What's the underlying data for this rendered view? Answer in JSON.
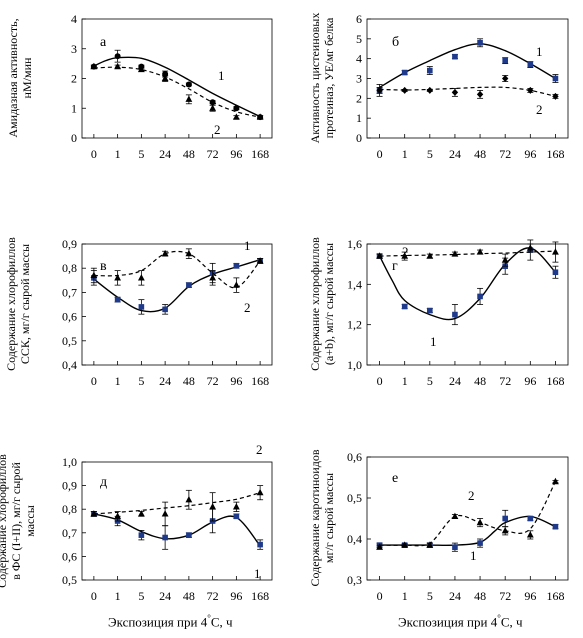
{
  "x_ticks": [
    "0",
    "1",
    "5",
    "24",
    "48",
    "72",
    "96",
    "168"
  ],
  "x_axis_label": {
    "before": "Экспозиция при 4",
    "degree": "°",
    "after": "С, ч"
  },
  "chart_data": [
    {
      "id": "a",
      "type": "line",
      "panel_letter": "а",
      "ylabel": [
        "Амидазная активность,",
        "нМ/мин"
      ],
      "ylim": [
        0,
        4
      ],
      "yticks": [
        0,
        1,
        2,
        3,
        4
      ],
      "ytick_decimals": 0,
      "categories": [
        "0",
        "1",
        "5",
        "24",
        "48",
        "72",
        "96",
        "168"
      ],
      "series": [
        {
          "name": "1",
          "marker": "circle",
          "dashed": false,
          "values": [
            2.4,
            2.75,
            2.4,
            2.15,
            1.8,
            1.2,
            1.0,
            0.7
          ],
          "errors": [
            0.05,
            0.2,
            0.05,
            0.1,
            0.05,
            0.05,
            0.05,
            0.05
          ],
          "curve": [
            [
              0,
              2.42
            ],
            [
              0.5,
              2.6
            ],
            [
              1,
              2.7
            ],
            [
              2,
              2.68
            ],
            [
              3,
              2.38
            ],
            [
              4,
              1.95
            ],
            [
              5,
              1.5
            ],
            [
              6,
              1.1
            ],
            [
              7,
              0.72
            ]
          ]
        },
        {
          "name": "2",
          "marker": "triangle",
          "dashed": true,
          "values": [
            2.4,
            2.4,
            2.3,
            2.0,
            1.3,
            1.0,
            0.7,
            0.7
          ],
          "errors": [
            0.05,
            0.05,
            0.05,
            0.1,
            0.15,
            0.1,
            0.05,
            0.05
          ],
          "curve": [
            [
              0,
              2.35
            ],
            [
              1,
              2.38
            ],
            [
              2,
              2.3
            ],
            [
              3,
              2.05
            ],
            [
              4,
              1.65
            ],
            [
              5,
              1.2
            ],
            [
              6,
              0.88
            ],
            [
              7,
              0.7
            ]
          ]
        }
      ]
    },
    {
      "id": "b",
      "type": "line",
      "panel_letter": "б",
      "ylabel": [
        "Активность цистеиновых",
        "протеиназ, УЕ/мг белка"
      ],
      "ylim": [
        0,
        6
      ],
      "yticks": [
        0,
        1,
        2,
        3,
        4,
        5,
        6
      ],
      "ytick_decimals": 0,
      "categories": [
        "0",
        "1",
        "5",
        "24",
        "48",
        "72",
        "96",
        "168"
      ],
      "series": [
        {
          "name": "1",
          "marker": "square",
          "dashed": false,
          "values": [
            2.4,
            3.3,
            3.4,
            4.1,
            4.8,
            3.9,
            3.7,
            3.0
          ],
          "errors": [
            0.3,
            0.1,
            0.2,
            0.1,
            0.2,
            0.15,
            0.15,
            0.2
          ],
          "curve": [
            [
              0,
              2.55
            ],
            [
              1,
              3.3
            ],
            [
              2,
              3.9
            ],
            [
              3,
              4.45
            ],
            [
              4,
              4.75
            ],
            [
              5,
              4.4
            ],
            [
              6,
              3.75
            ],
            [
              7,
              3.0
            ]
          ]
        },
        {
          "name": "2",
          "marker": "diamond",
          "dashed": true,
          "values": [
            2.4,
            2.4,
            2.4,
            2.3,
            2.2,
            3.0,
            2.4,
            2.1
          ],
          "errors": [
            0.15,
            0.05,
            0.05,
            0.2,
            0.2,
            0.15,
            0.1,
            0.1
          ],
          "curve": [
            [
              0,
              2.45
            ],
            [
              1,
              2.42
            ],
            [
              2,
              2.45
            ],
            [
              3,
              2.5
            ],
            [
              4,
              2.55
            ],
            [
              5,
              2.55
            ],
            [
              6,
              2.4
            ],
            [
              7,
              2.1
            ]
          ]
        }
      ]
    },
    {
      "id": "v",
      "type": "line",
      "panel_letter": "в",
      "ylabel": [
        "Содержание хлорофиллов",
        "ССК, мг/г сырой массы"
      ],
      "ylim": [
        0.4,
        0.9
      ],
      "yticks": [
        0.4,
        0.5,
        0.6,
        0.7,
        0.8,
        0.9
      ],
      "ytick_decimals": 1,
      "categories": [
        "0",
        "1",
        "5",
        "24",
        "48",
        "72",
        "96",
        "168"
      ],
      "series": [
        {
          "name": "1",
          "marker": "square",
          "dashed": false,
          "values": [
            0.76,
            0.67,
            0.64,
            0.63,
            0.73,
            0.78,
            0.81,
            0.83
          ],
          "errors": [
            0.03,
            0.01,
            0.03,
            0.02,
            0.01,
            0.04,
            0.01,
            0.01
          ],
          "curve": [
            [
              0,
              0.755
            ],
            [
              1,
              0.68
            ],
            [
              2,
              0.625
            ],
            [
              3,
              0.635
            ],
            [
              4,
              0.725
            ],
            [
              5,
              0.775
            ],
            [
              6,
              0.805
            ],
            [
              7,
              0.835
            ]
          ]
        },
        {
          "name": "2",
          "marker": "triangle",
          "dashed": true,
          "values": [
            0.77,
            0.76,
            0.76,
            0.86,
            0.86,
            0.76,
            0.73,
            0.83
          ],
          "errors": [
            0.03,
            0.03,
            0.03,
            0.01,
            0.02,
            0.03,
            0.03,
            0.01
          ],
          "curve": [
            [
              0,
              0.77
            ],
            [
              1,
              0.77
            ],
            [
              2,
              0.79
            ],
            [
              3,
              0.86
            ],
            [
              4,
              0.86
            ],
            [
              5,
              0.78
            ],
            [
              6,
              0.72
            ],
            [
              7,
              0.83
            ]
          ]
        }
      ]
    },
    {
      "id": "g",
      "type": "line",
      "panel_letter": "г",
      "ylabel": [
        "Содержание хлорофиллов",
        "(a+b), мг/г сырой массы"
      ],
      "ylim": [
        1.0,
        1.6
      ],
      "yticks": [
        1.0,
        1.2,
        1.4,
        1.6
      ],
      "ytick_decimals": 1,
      "categories": [
        "0",
        "1",
        "5",
        "24",
        "48",
        "72",
        "96",
        "168"
      ],
      "series": [
        {
          "name": "1",
          "marker": "square",
          "dashed": false,
          "values": [
            1.54,
            1.29,
            1.27,
            1.25,
            1.34,
            1.49,
            1.57,
            1.46
          ],
          "errors": [
            0.01,
            0.01,
            0.01,
            0.05,
            0.04,
            0.04,
            0.05,
            0.03
          ],
          "curve": [
            [
              0,
              1.54
            ],
            [
              0.5,
              1.42
            ],
            [
              1,
              1.32
            ],
            [
              2,
              1.25
            ],
            [
              3,
              1.23
            ],
            [
              4,
              1.33
            ],
            [
              5,
              1.5
            ],
            [
              6,
              1.58
            ],
            [
              7,
              1.46
            ]
          ]
        },
        {
          "name": "2",
          "marker": "triangle",
          "dashed": true,
          "values": [
            1.54,
            1.54,
            1.54,
            1.55,
            1.56,
            1.52,
            1.58,
            1.56
          ],
          "errors": [
            0.01,
            0.02,
            0.01,
            0.01,
            0.01,
            0.03,
            0.02,
            0.05
          ],
          "curve": [
            [
              0,
              1.54
            ],
            [
              1,
              1.543
            ],
            [
              2,
              1.545
            ],
            [
              3,
              1.548
            ],
            [
              4,
              1.552
            ],
            [
              5,
              1.555
            ],
            [
              6,
              1.56
            ],
            [
              7,
              1.565
            ]
          ]
        }
      ]
    },
    {
      "id": "d",
      "type": "line",
      "panel_letter": "д",
      "ylabel": [
        "Содержание хлорофиллов",
        "в ФС (I+II), мг/г сырой",
        "массы"
      ],
      "ylim": [
        0.5,
        1.0
      ],
      "yticks": [
        0.5,
        0.6,
        0.7,
        0.8,
        0.9,
        1.0
      ],
      "ytick_decimals": 1,
      "categories": [
        "0",
        "1",
        "5",
        "24",
        "48",
        "72",
        "96",
        "168"
      ],
      "series": [
        {
          "name": "1",
          "marker": "square",
          "dashed": false,
          "values": [
            0.78,
            0.75,
            0.69,
            0.68,
            0.69,
            0.75,
            0.77,
            0.65
          ],
          "errors": [
            0.01,
            0.02,
            0.02,
            0.05,
            0.01,
            0.05,
            0.01,
            0.02
          ],
          "curve": [
            [
              0,
              0.78
            ],
            [
              1,
              0.755
            ],
            [
              2,
              0.705
            ],
            [
              3,
              0.675
            ],
            [
              4,
              0.69
            ],
            [
              5,
              0.745
            ],
            [
              6,
              0.765
            ],
            [
              7,
              0.645
            ]
          ]
        },
        {
          "name": "2",
          "marker": "triangle",
          "dashed": true,
          "values": [
            0.78,
            0.77,
            0.78,
            0.78,
            0.84,
            0.81,
            0.81,
            0.87
          ],
          "errors": [
            0.01,
            0.02,
            0.01,
            0.05,
            0.04,
            0.06,
            0.02,
            0.03
          ],
          "curve": [
            [
              0,
              0.78
            ],
            [
              1,
              0.787
            ],
            [
              2,
              0.795
            ],
            [
              3,
              0.805
            ],
            [
              4,
              0.815
            ],
            [
              5,
              0.828
            ],
            [
              6,
              0.842
            ],
            [
              7,
              0.87
            ]
          ]
        }
      ]
    },
    {
      "id": "e",
      "type": "line",
      "panel_letter": "е",
      "ylabel": [
        "Содержание каротиноидов",
        "мг/г сырой массы"
      ],
      "ylim": [
        0.3,
        0.6
      ],
      "yticks": [
        0.3,
        0.4,
        0.5,
        0.6
      ],
      "ytick_decimals": 1,
      "categories": [
        "0",
        "1",
        "5",
        "24",
        "48",
        "72",
        "96",
        "168"
      ],
      "series": [
        {
          "name": "1",
          "marker": "square",
          "dashed": false,
          "values": [
            0.385,
            0.385,
            0.385,
            0.38,
            0.39,
            0.45,
            0.45,
            0.43
          ],
          "errors": [
            0.005,
            0.003,
            0.005,
            0.01,
            0.01,
            0.02,
            0.005,
            0.005
          ],
          "curve": [
            [
              0,
              0.385
            ],
            [
              1,
              0.385
            ],
            [
              2,
              0.385
            ],
            [
              3,
              0.385
            ],
            [
              4,
              0.392
            ],
            [
              4.6,
              0.42
            ],
            [
              5,
              0.44
            ],
            [
              6,
              0.455
            ],
            [
              7,
              0.43
            ]
          ]
        },
        {
          "name": "2",
          "marker": "triangle",
          "dashed": true,
          "values": [
            0.38,
            0.385,
            0.385,
            0.455,
            0.44,
            0.42,
            0.41,
            0.54
          ],
          "errors": [
            0.005,
            0.003,
            0.005,
            0.005,
            0.01,
            0.01,
            0.01,
            0.003
          ],
          "curve": [
            [
              0,
              0.385
            ],
            [
              1,
              0.385
            ],
            [
              2,
              0.39
            ],
            [
              3,
              0.455
            ],
            [
              4,
              0.44
            ],
            [
              5,
              0.42
            ],
            [
              6,
              0.425
            ],
            [
              7,
              0.54
            ]
          ]
        }
      ]
    }
  ]
}
